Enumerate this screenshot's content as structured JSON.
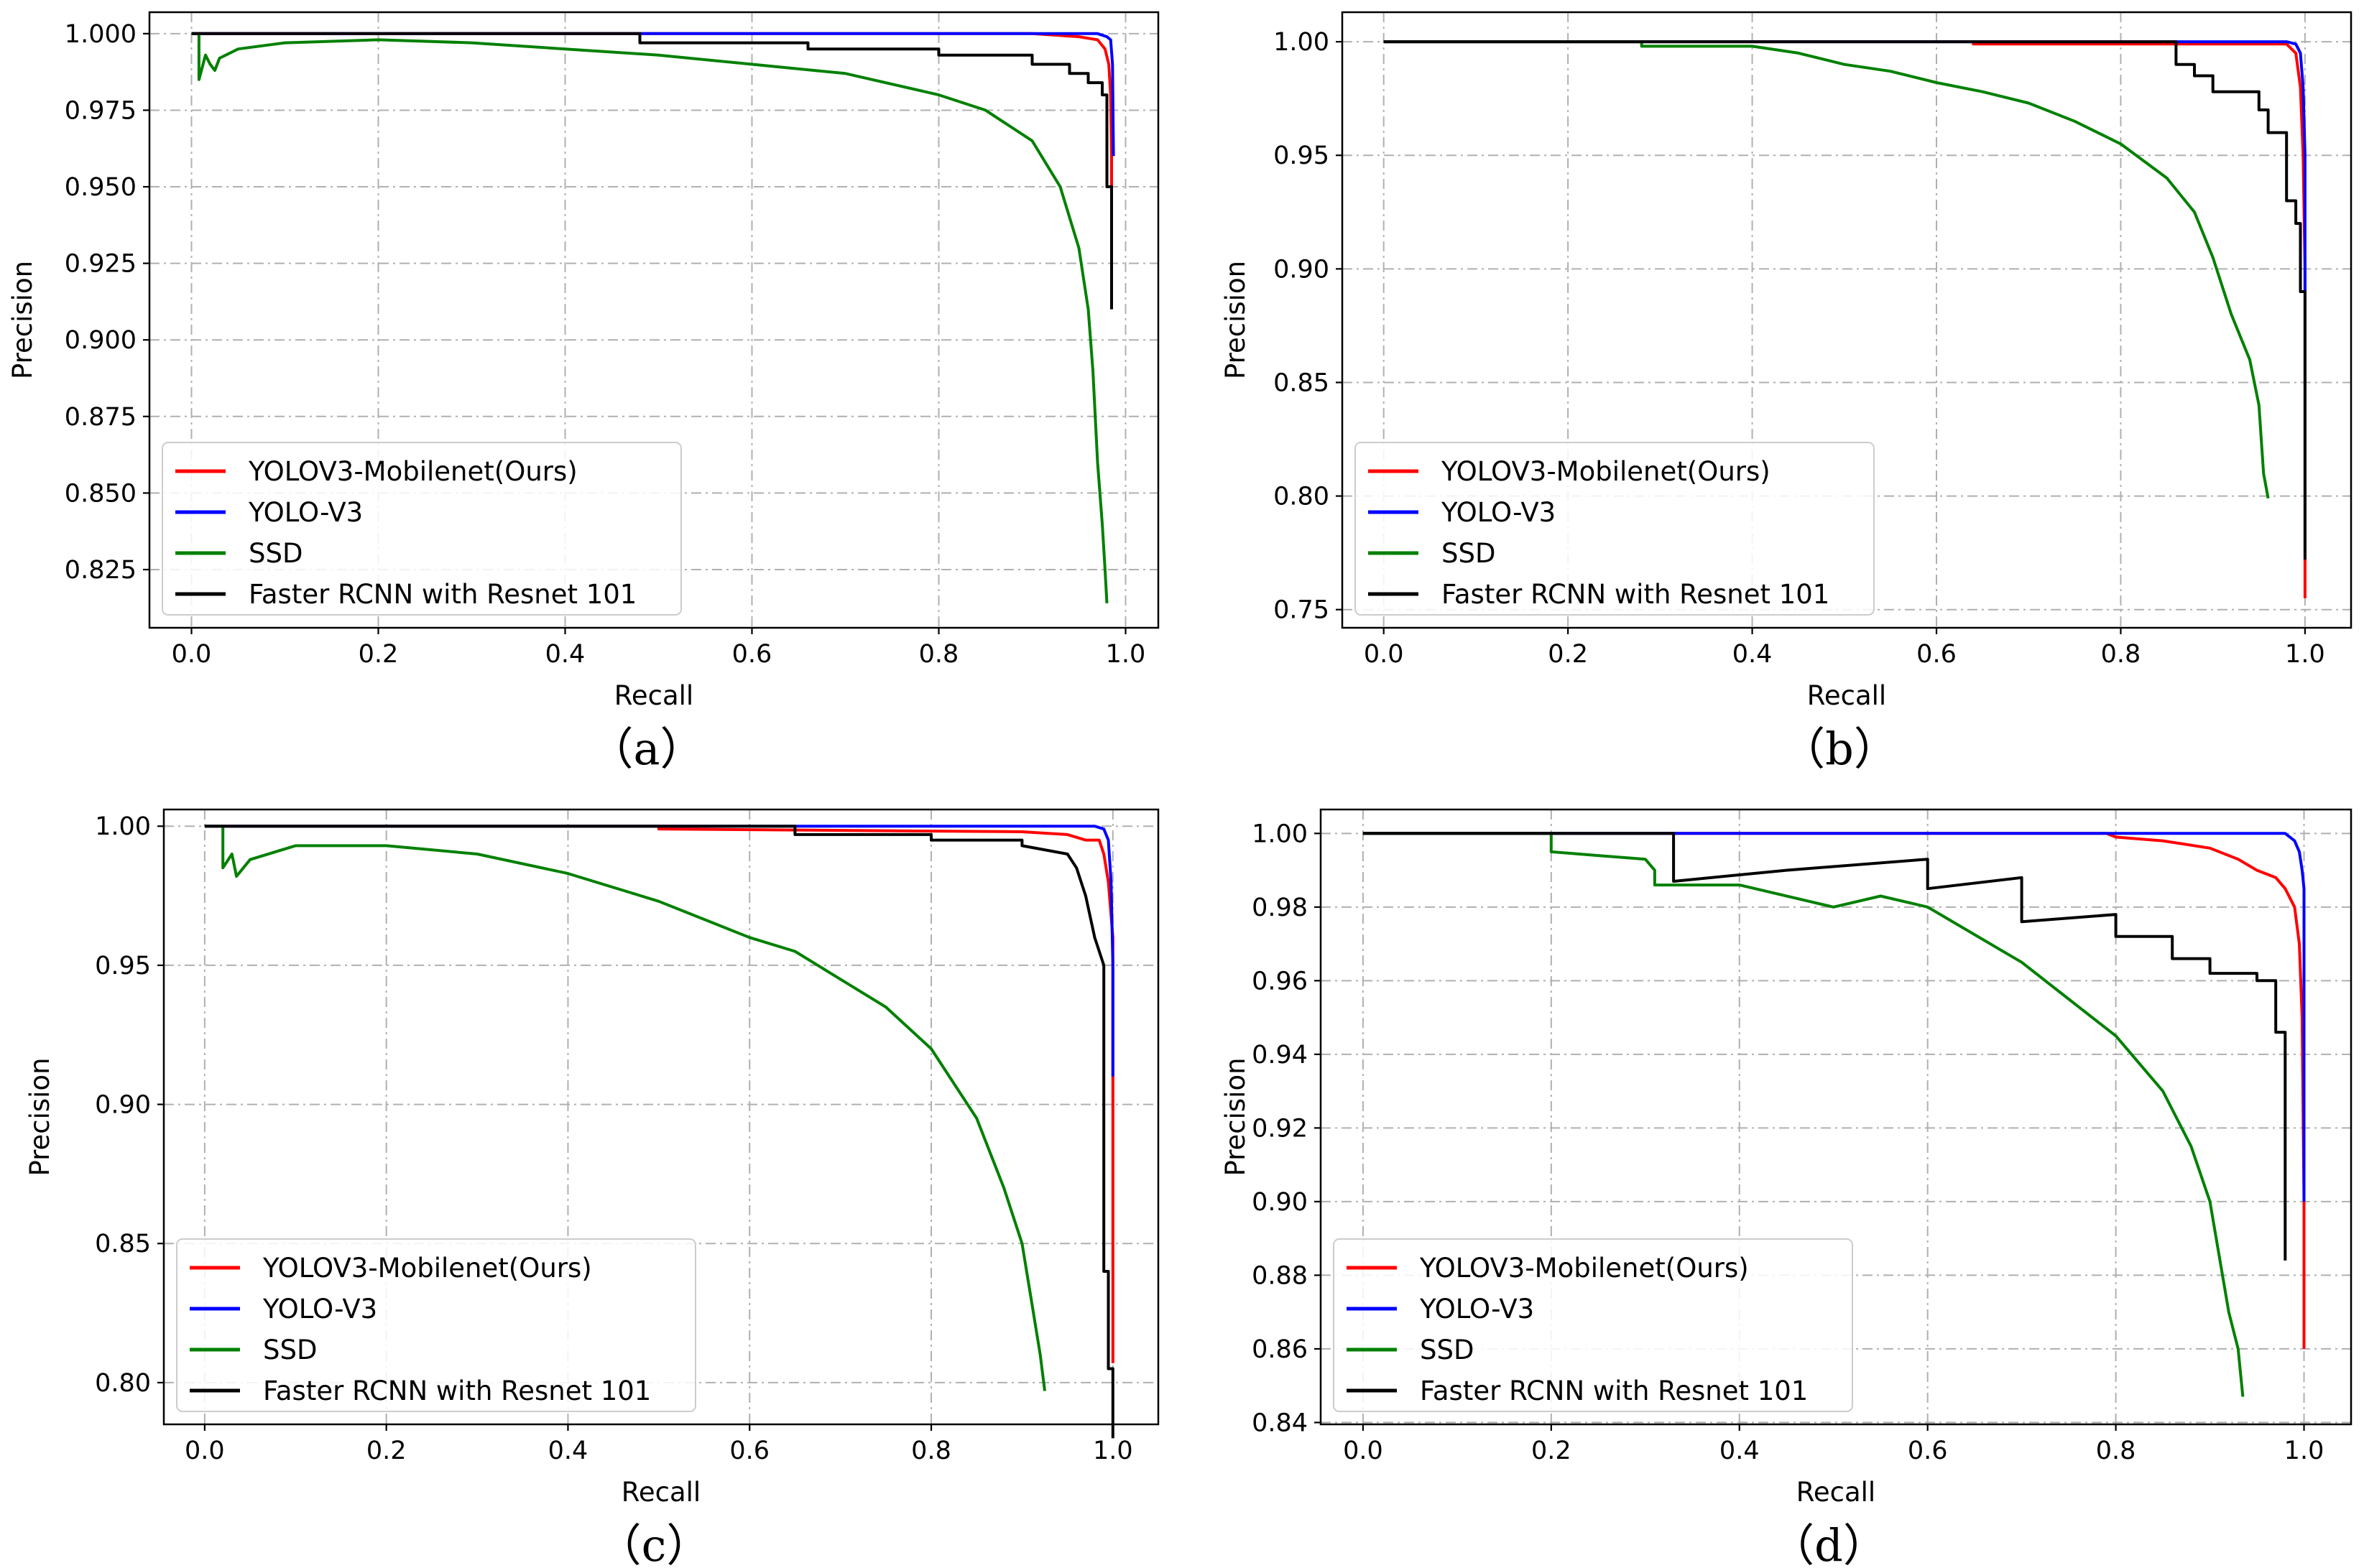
{
  "colors": {
    "YOLOV3-Mobilenet(Ours)": "#ff0000",
    "YOLO-V3": "#0000ff",
    "SSD": "#008000",
    "Faster RCNN with Resnet 101": "#000000"
  },
  "chart_data": [
    {
      "type": "line",
      "caption": "（a）",
      "xlabel": "Recall",
      "ylabel": "Precision",
      "xlim": [
        -0.045,
        1.035
      ],
      "ylim": [
        0.806,
        1.007
      ],
      "xticks": [
        0.0,
        0.2,
        0.4,
        0.6,
        0.8,
        1.0
      ],
      "xtick_labels": [
        "0.0",
        "0.2",
        "0.4",
        "0.6",
        "0.8",
        "1.0"
      ],
      "yticks": [
        0.825,
        0.85,
        0.875,
        0.9,
        0.925,
        0.95,
        0.975,
        1.0
      ],
      "ytick_labels": [
        "0.825",
        "0.850",
        "0.875",
        "0.900",
        "0.925",
        "0.950",
        "0.975",
        "1.000"
      ],
      "grid": true,
      "legend_position": "lower-left",
      "series": [
        {
          "name": "YOLOV3-Mobilenet(Ours)",
          "x": [
            0,
            0.9,
            0.95,
            0.97,
            0.978,
            0.982,
            0.984,
            0.985,
            0.985
          ],
          "y": [
            1,
            1,
            0.999,
            0.998,
            0.995,
            0.99,
            0.98,
            0.96,
            0.917
          ]
        },
        {
          "name": "YOLO-V3",
          "x": [
            0,
            0.9,
            0.97,
            0.98,
            0.984,
            0.986,
            0.987
          ],
          "y": [
            1,
            1,
            1,
            0.999,
            0.998,
            0.99,
            0.96
          ]
        },
        {
          "name": "SSD",
          "x": [
            0,
            0.008,
            0.008,
            0.015,
            0.02,
            0.025,
            0.03,
            0.05,
            0.1,
            0.2,
            0.3,
            0.4,
            0.5,
            0.6,
            0.7,
            0.8,
            0.85,
            0.9,
            0.93,
            0.95,
            0.96,
            0.965,
            0.97,
            0.975,
            0.978,
            0.98
          ],
          "y": [
            1,
            1,
            0.985,
            0.993,
            0.99,
            0.988,
            0.992,
            0.995,
            0.997,
            0.998,
            0.997,
            0.995,
            0.993,
            0.99,
            0.987,
            0.98,
            0.975,
            0.965,
            0.95,
            0.93,
            0.91,
            0.89,
            0.86,
            0.84,
            0.825,
            0.814
          ]
        },
        {
          "name": "Faster RCNN with Resnet 101",
          "x": [
            0,
            0.48,
            0.48,
            0.66,
            0.66,
            0.8,
            0.8,
            0.9,
            0.9,
            0.94,
            0.94,
            0.96,
            0.96,
            0.975,
            0.975,
            0.98,
            0.98,
            0.985,
            0.985
          ],
          "y": [
            1,
            1,
            0.997,
            0.997,
            0.995,
            0.995,
            0.993,
            0.993,
            0.99,
            0.99,
            0.987,
            0.987,
            0.984,
            0.984,
            0.98,
            0.98,
            0.95,
            0.95,
            0.91
          ]
        }
      ]
    },
    {
      "type": "line",
      "caption": "（b）",
      "xlabel": "Recall",
      "ylabel": "Precision",
      "xlim": [
        -0.045,
        1.05
      ],
      "ylim": [
        0.742,
        1.013
      ],
      "xticks": [
        0.0,
        0.2,
        0.4,
        0.6,
        0.8,
        1.0
      ],
      "xtick_labels": [
        "0.0",
        "0.2",
        "0.4",
        "0.6",
        "0.8",
        "1.0"
      ],
      "yticks": [
        0.75,
        0.8,
        0.85,
        0.9,
        0.95,
        1.0
      ],
      "ytick_labels": [
        "0.75",
        "0.80",
        "0.85",
        "0.90",
        "0.95",
        "1.00"
      ],
      "grid": true,
      "legend_position": "lower-left",
      "series": [
        {
          "name": "YOLOV3-Mobilenet(Ours)",
          "x": [
            0,
            0.64,
            0.64,
            0.98,
            0.99,
            0.995,
            0.998,
            1.0,
            1.0,
            1.0
          ],
          "y": [
            1,
            1,
            0.999,
            0.999,
            0.995,
            0.98,
            0.95,
            0.9,
            0.8,
            0.755
          ]
        },
        {
          "name": "YOLO-V3",
          "x": [
            0,
            0.98,
            0.99,
            0.995,
            0.998,
            1.0,
            1.0
          ],
          "y": [
            1,
            1,
            0.999,
            0.995,
            0.98,
            0.95,
            0.89
          ]
        },
        {
          "name": "SSD",
          "x": [
            0,
            0.28,
            0.28,
            0.4,
            0.45,
            0.5,
            0.55,
            0.6,
            0.65,
            0.7,
            0.75,
            0.8,
            0.85,
            0.88,
            0.9,
            0.92,
            0.94,
            0.95,
            0.955,
            0.96
          ],
          "y": [
            1,
            1,
            0.998,
            0.998,
            0.995,
            0.99,
            0.987,
            0.982,
            0.978,
            0.973,
            0.965,
            0.955,
            0.94,
            0.925,
            0.905,
            0.88,
            0.86,
            0.84,
            0.81,
            0.799
          ]
        },
        {
          "name": "Faster RCNN with Resnet 101",
          "x": [
            0,
            0.86,
            0.86,
            0.88,
            0.88,
            0.9,
            0.9,
            0.95,
            0.95,
            0.96,
            0.96,
            0.98,
            0.98,
            0.99,
            0.99,
            0.995,
            0.995,
            1.0,
            1.0
          ],
          "y": [
            1,
            1,
            0.99,
            0.99,
            0.985,
            0.985,
            0.978,
            0.978,
            0.97,
            0.97,
            0.96,
            0.96,
            0.93,
            0.93,
            0.92,
            0.92,
            0.89,
            0.89,
            0.772
          ]
        }
      ]
    },
    {
      "type": "line",
      "caption": "（c）",
      "xlabel": "Recall",
      "ylabel": "Precision",
      "xlim": [
        -0.045,
        1.05
      ],
      "ylim": [
        0.785,
        1.006
      ],
      "xticks": [
        0.0,
        0.2,
        0.4,
        0.6,
        0.8,
        1.0
      ],
      "xtick_labels": [
        "0.0",
        "0.2",
        "0.4",
        "0.6",
        "0.8",
        "1.0"
      ],
      "yticks": [
        0.8,
        0.85,
        0.9,
        0.95,
        1.0
      ],
      "ytick_labels": [
        "0.80",
        "0.85",
        "0.90",
        "0.95",
        "1.00"
      ],
      "grid": true,
      "legend_position": "lower-left",
      "series": [
        {
          "name": "YOLOV3-Mobilenet(Ours)",
          "x": [
            0,
            0.5,
            0.5,
            0.9,
            0.95,
            0.97,
            0.985,
            0.99,
            0.995,
            1.0,
            1.0,
            1.0
          ],
          "y": [
            1,
            1,
            0.999,
            0.998,
            0.997,
            0.995,
            0.995,
            0.99,
            0.98,
            0.96,
            0.91,
            0.807
          ]
        },
        {
          "name": "YOLO-V3",
          "x": [
            0,
            0.98,
            0.99,
            0.995,
            0.998,
            1.0,
            1.0
          ],
          "y": [
            1,
            1,
            0.999,
            0.995,
            0.98,
            0.95,
            0.91
          ]
        },
        {
          "name": "SSD",
          "x": [
            0,
            0.02,
            0.02,
            0.03,
            0.035,
            0.05,
            0.1,
            0.15,
            0.2,
            0.3,
            0.4,
            0.5,
            0.6,
            0.65,
            0.7,
            0.75,
            0.8,
            0.85,
            0.88,
            0.9,
            0.91,
            0.92,
            0.925
          ],
          "y": [
            1,
            1,
            0.985,
            0.99,
            0.982,
            0.988,
            0.993,
            0.993,
            0.993,
            0.99,
            0.983,
            0.973,
            0.96,
            0.955,
            0.945,
            0.935,
            0.92,
            0.895,
            0.87,
            0.85,
            0.83,
            0.81,
            0.797
          ]
        },
        {
          "name": "Faster RCNN with Resnet 101",
          "x": [
            0,
            0.65,
            0.65,
            0.8,
            0.8,
            0.9,
            0.9,
            0.95,
            0.96,
            0.97,
            0.98,
            0.99,
            0.99,
            0.995,
            0.995,
            1.0,
            1.0
          ],
          "y": [
            1,
            1,
            0.997,
            0.997,
            0.995,
            0.995,
            0.993,
            0.99,
            0.985,
            0.975,
            0.96,
            0.95,
            0.84,
            0.84,
            0.805,
            0.805,
            0.78
          ]
        }
      ]
    },
    {
      "type": "line",
      "caption": "（d）",
      "xlabel": "Recall",
      "ylabel": "Precision",
      "xlim": [
        -0.045,
        1.05
      ],
      "ylim": [
        0.8395,
        1.0065
      ],
      "xticks": [
        0.0,
        0.2,
        0.4,
        0.6,
        0.8,
        1.0
      ],
      "xtick_labels": [
        "0.0",
        "0.2",
        "0.4",
        "0.6",
        "0.8",
        "1.0"
      ],
      "yticks": [
        0.84,
        0.86,
        0.88,
        0.9,
        0.92,
        0.94,
        0.96,
        0.98,
        1.0
      ],
      "ytick_labels": [
        "0.84",
        "0.86",
        "0.88",
        "0.90",
        "0.92",
        "0.94",
        "0.96",
        "0.98",
        "1.00"
      ],
      "grid": true,
      "legend_position": "lower-left",
      "series": [
        {
          "name": "YOLOV3-Mobilenet(Ours)",
          "x": [
            0,
            0.79,
            0.8,
            0.85,
            0.9,
            0.93,
            0.95,
            0.97,
            0.98,
            0.99,
            0.995,
            0.998,
            1.0,
            1.0
          ],
          "y": [
            1,
            1,
            0.999,
            0.998,
            0.996,
            0.993,
            0.99,
            0.988,
            0.985,
            0.98,
            0.97,
            0.95,
            0.9,
            0.86
          ]
        },
        {
          "name": "YOLO-V3",
          "x": [
            0,
            0.98,
            0.99,
            0.995,
            0.998,
            1.0,
            1.0
          ],
          "y": [
            1,
            1,
            0.998,
            0.995,
            0.99,
            0.985,
            0.9
          ]
        },
        {
          "name": "SSD",
          "x": [
            0,
            0.2,
            0.2,
            0.25,
            0.3,
            0.31,
            0.31,
            0.4,
            0.5,
            0.55,
            0.6,
            0.7,
            0.75,
            0.8,
            0.85,
            0.88,
            0.9,
            0.91,
            0.92,
            0.93,
            0.935
          ],
          "y": [
            1,
            1,
            0.995,
            0.994,
            0.993,
            0.99,
            0.986,
            0.986,
            0.98,
            0.983,
            0.98,
            0.965,
            0.955,
            0.945,
            0.93,
            0.915,
            0.9,
            0.885,
            0.87,
            0.86,
            0.847
          ]
        },
        {
          "name": "Faster RCNN with Resnet 101",
          "x": [
            0,
            0.33,
            0.33,
            0.45,
            0.6,
            0.6,
            0.7,
            0.7,
            0.8,
            0.8,
            0.86,
            0.86,
            0.9,
            0.9,
            0.95,
            0.95,
            0.97,
            0.97,
            0.98,
            0.98
          ],
          "y": [
            1,
            1,
            0.987,
            0.99,
            0.993,
            0.985,
            0.988,
            0.976,
            0.978,
            0.972,
            0.972,
            0.966,
            0.966,
            0.962,
            0.962,
            0.96,
            0.96,
            0.946,
            0.946,
            0.884
          ]
        }
      ]
    }
  ]
}
